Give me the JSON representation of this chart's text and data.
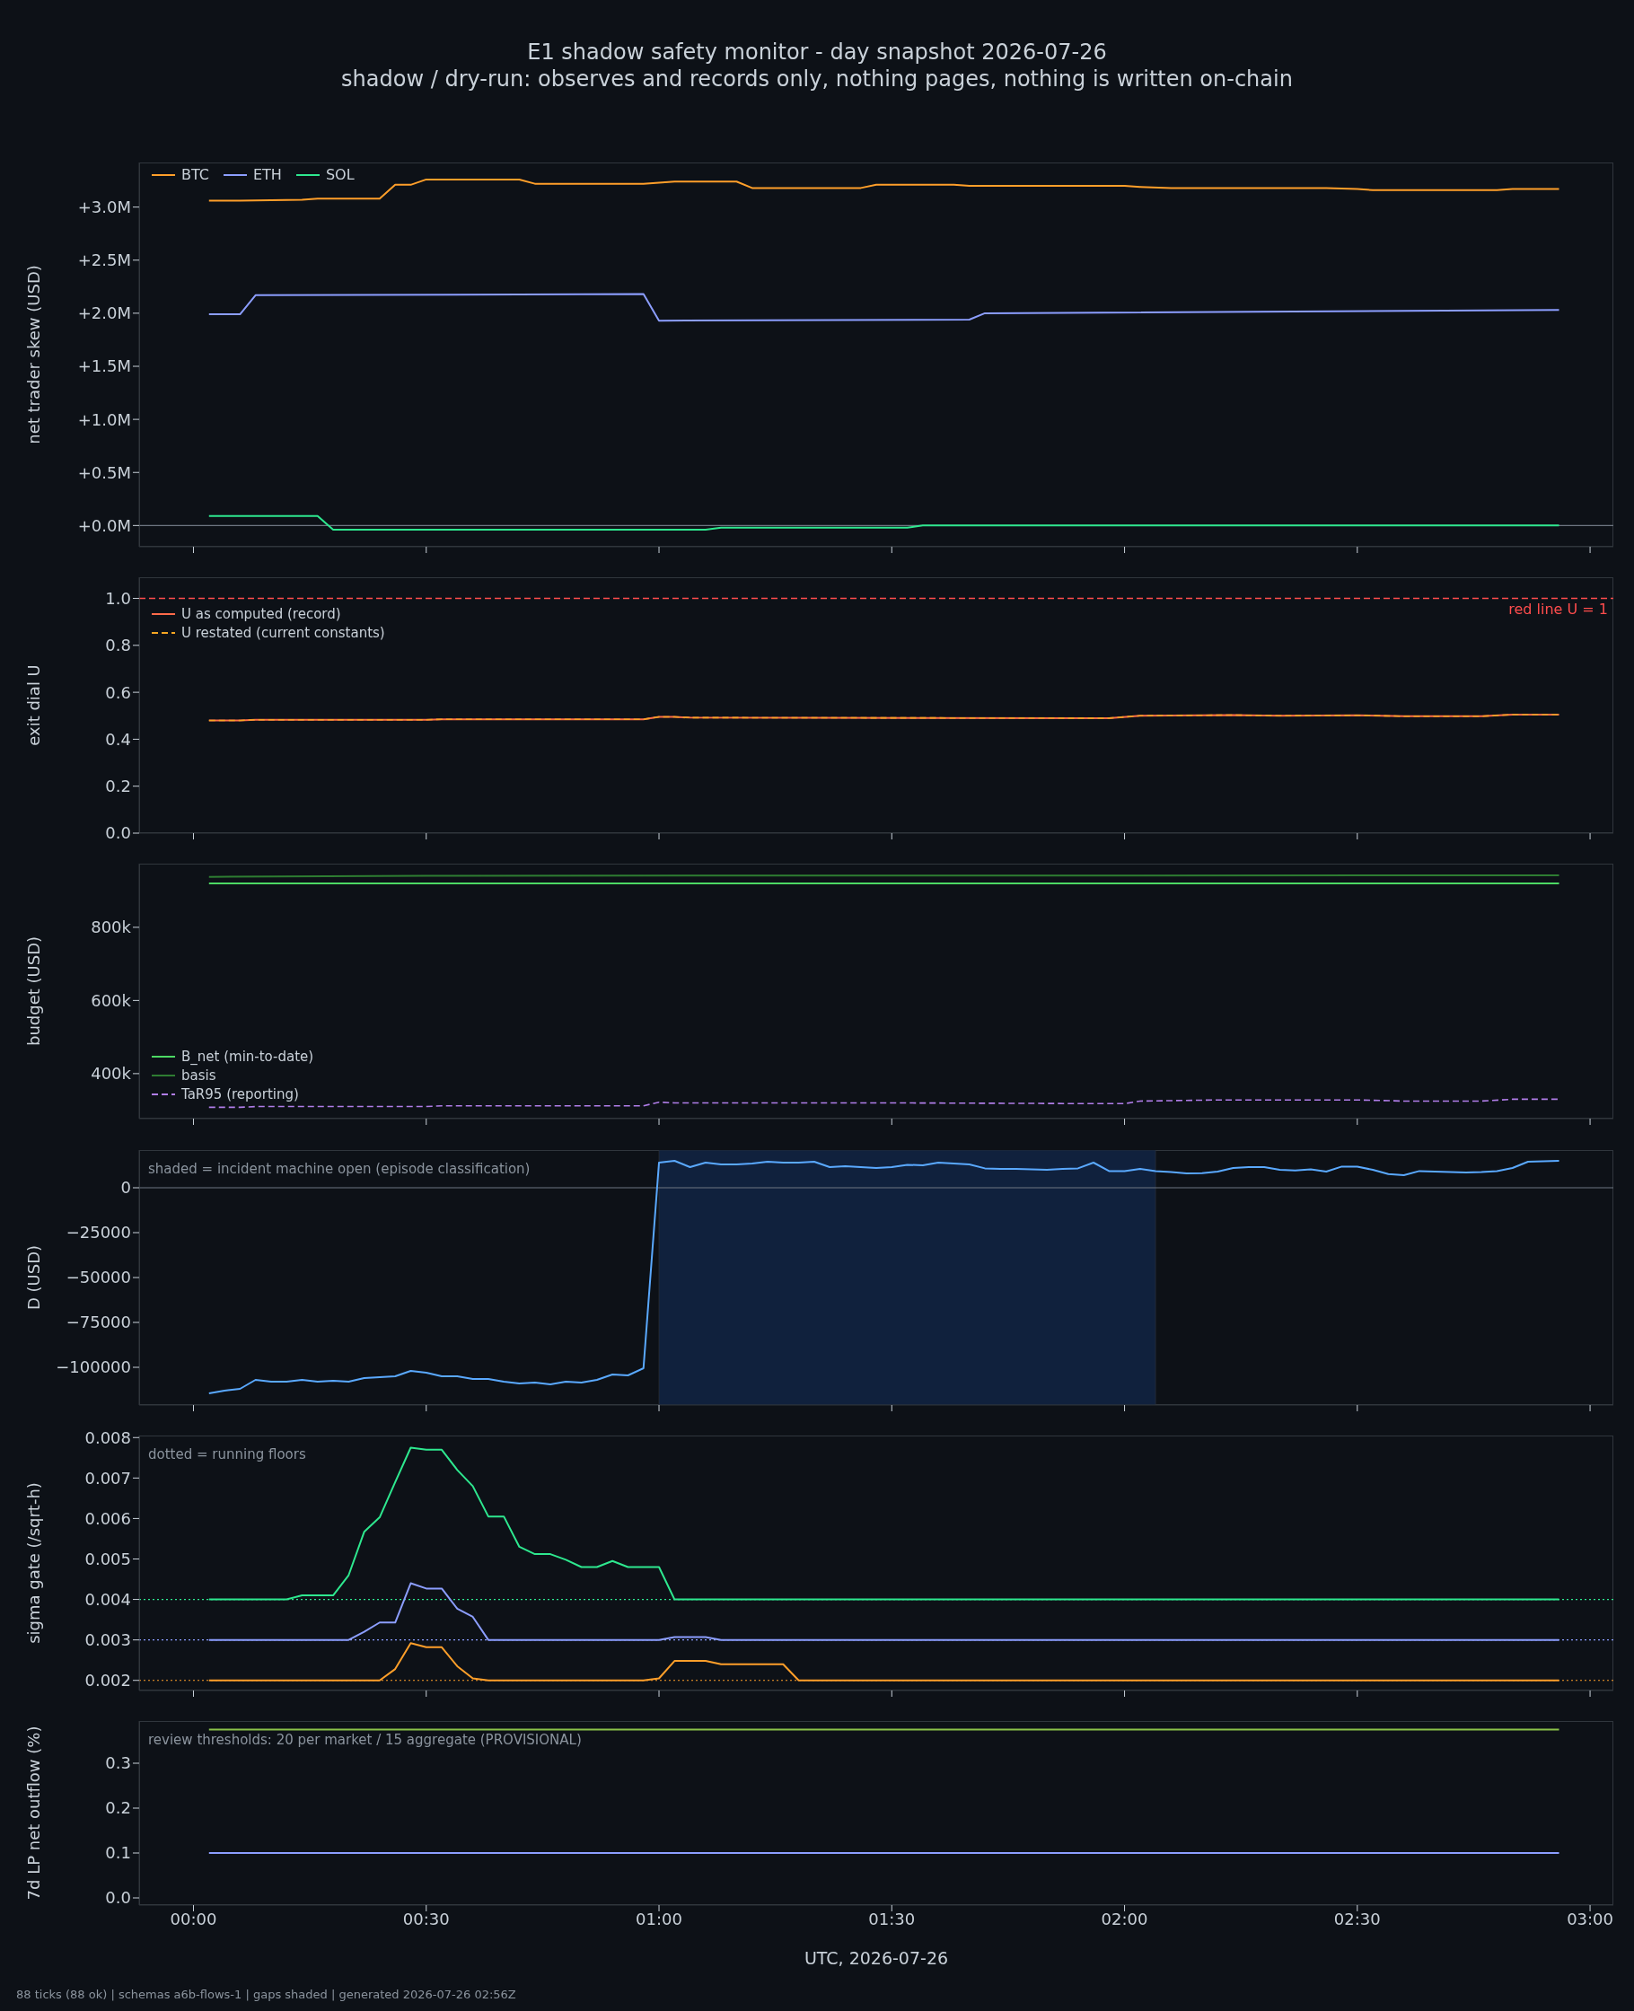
{
  "chart_data": [
    {
      "type": "line",
      "title": "E1 shadow safety monitor - day snapshot 2026-07-26",
      "subtitle": "shadow / dry-run: observes and records only, nothing pages, nothing is written on-chain",
      "ylabel": "net trader skew (USD)",
      "xlim": [
        "2026-07-25T23:53",
        "2026-07-26T03:03"
      ],
      "xticks": [
        {
          "value": "2026-07-26T00:00",
          "label": null
        },
        {
          "value": "2026-07-26T00:30",
          "label": null
        },
        {
          "value": "2026-07-26T01:00",
          "label": null
        },
        {
          "value": "2026-07-26T01:30",
          "label": null
        },
        {
          "value": "2026-07-26T02:00",
          "label": null
        },
        {
          "value": "2026-07-26T02:30",
          "label": null
        },
        {
          "value": "2026-07-26T03:00",
          "label": null
        }
      ],
      "ylim": [
        -0.2,
        3.42
      ],
      "yticks": [
        {
          "value": 0,
          "label": "+0.0M"
        },
        {
          "value": 0.5,
          "label": "+0.5M"
        },
        {
          "value": 1,
          "label": "+1.0M"
        },
        {
          "value": 1.5,
          "label": "+1.5M"
        },
        {
          "value": 2,
          "label": "+2.0M"
        },
        {
          "value": 2.5,
          "label": "+2.5M"
        },
        {
          "value": 3,
          "label": "+3.0M"
        }
      ],
      "tick_labels": "y",
      "legend": "top left",
      "ref_lines": [
        {
          "axis": "y",
          "value": 0,
          "color": "#6e7681"
        }
      ],
      "series": [
        {
          "name": "BTC",
          "color": "#ff9f2a",
          "x": [
            "2026-07-26T00:02",
            "2026-07-26T00:06",
            "2026-07-26T00:14",
            "2026-07-26T00:16",
            "2026-07-26T00:24",
            "2026-07-26T00:26",
            "2026-07-26T00:28",
            "2026-07-26T00:30",
            "2026-07-26T00:42",
            "2026-07-26T00:44",
            "2026-07-26T00:58",
            "2026-07-26T01:02",
            "2026-07-26T01:10",
            "2026-07-26T01:12",
            "2026-07-26T01:26",
            "2026-07-26T01:28",
            "2026-07-26T01:38",
            "2026-07-26T01:40",
            "2026-07-26T02:00",
            "2026-07-26T02:02",
            "2026-07-26T02:06",
            "2026-07-26T02:26",
            "2026-07-26T02:30",
            "2026-07-26T02:32",
            "2026-07-26T02:48",
            "2026-07-26T02:50",
            "2026-07-26T02:56"
          ],
          "values": [
            3.06,
            3.06,
            3.07,
            3.08,
            3.08,
            3.21,
            3.21,
            3.26,
            3.26,
            3.22,
            3.22,
            3.24,
            3.24,
            3.18,
            3.18,
            3.21,
            3.21,
            3.2,
            3.2,
            3.19,
            3.18,
            3.18,
            3.17,
            3.16,
            3.16,
            3.17,
            3.17
          ]
        },
        {
          "name": "ETH",
          "color": "#8c9eff",
          "x": [
            "2026-07-26T00:02",
            "2026-07-26T00:06",
            "2026-07-26T00:08",
            "2026-07-26T00:58",
            "2026-07-26T01:00",
            "2026-07-26T01:40",
            "2026-07-26T01:42",
            "2026-07-26T02:56"
          ],
          "values": [
            1.99,
            1.99,
            2.17,
            2.18,
            1.93,
            1.94,
            2.0,
            2.03
          ]
        },
        {
          "name": "SOL",
          "color": "#2ee88f",
          "x": [
            "2026-07-26T00:02",
            "2026-07-26T00:16",
            "2026-07-26T00:18",
            "2026-07-26T01:06",
            "2026-07-26T01:08",
            "2026-07-26T01:32",
            "2026-07-26T01:34",
            "2026-07-26T02:56"
          ],
          "values": [
            0.09,
            0.09,
            -0.04,
            -0.04,
            -0.02,
            -0.02,
            0,
            0
          ]
        }
      ]
    },
    {
      "type": "line",
      "ylabel": "exit dial U",
      "xlim": [
        "2026-07-25T23:53",
        "2026-07-26T03:03"
      ],
      "xticks": [
        {
          "value": "2026-07-26T00:00",
          "label": null
        },
        {
          "value": "2026-07-26T00:30",
          "label": null
        },
        {
          "value": "2026-07-26T01:00",
          "label": null
        },
        {
          "value": "2026-07-26T01:30",
          "label": null
        },
        {
          "value": "2026-07-26T02:00",
          "label": null
        },
        {
          "value": "2026-07-26T02:30",
          "label": null
        },
        {
          "value": "2026-07-26T03:00",
          "label": null
        }
      ],
      "ylim": [
        0,
        1.09
      ],
      "yticks": [
        {
          "value": 0,
          "label": "0.0"
        },
        {
          "value": 0.2,
          "label": "0.2"
        },
        {
          "value": 0.4,
          "label": "0.4"
        },
        {
          "value": 0.6,
          "label": "0.6"
        },
        {
          "value": 0.8,
          "label": "0.8"
        },
        {
          "value": 1,
          "label": "1.0"
        }
      ],
      "tick_labels": "y",
      "legend": "top left",
      "ref_lines": [
        {
          "axis": "y",
          "value": 1,
          "label": "red line U = 1",
          "color": "#ff4d4d",
          "line_style": "dashed"
        }
      ],
      "x": [
        "2026-07-26T00:02",
        "2026-07-26T00:06",
        "2026-07-26T00:08",
        "2026-07-26T00:30",
        "2026-07-26T00:32",
        "2026-07-26T00:58",
        "2026-07-26T01:00",
        "2026-07-26T01:02",
        "2026-07-26T01:04",
        "2026-07-26T01:58",
        "2026-07-26T02:02",
        "2026-07-26T02:14",
        "2026-07-26T02:20",
        "2026-07-26T02:30",
        "2026-07-26T02:36",
        "2026-07-26T02:46",
        "2026-07-26T02:50",
        "2026-07-26T02:56"
      ],
      "series": [
        {
          "name": "U as computed (record)",
          "color": "#ff6b4a",
          "values": [
            0.48,
            0.48,
            0.483,
            0.483,
            0.485,
            0.485,
            0.495,
            0.495,
            0.492,
            0.49,
            0.5,
            0.503,
            0.5,
            0.502,
            0.498,
            0.498,
            0.505,
            0.505
          ]
        },
        {
          "name": "U restated (current constants)",
          "color": "#f5a623",
          "line_style": "dashed",
          "values": [
            0.48,
            0.48,
            0.483,
            0.483,
            0.485,
            0.485,
            0.495,
            0.495,
            0.492,
            0.49,
            0.5,
            0.503,
            0.5,
            0.502,
            0.498,
            0.498,
            0.505,
            0.505
          ]
        }
      ]
    },
    {
      "type": "line",
      "ylabel": "budget (USD)",
      "xlim": [
        "2026-07-25T23:53",
        "2026-07-26T03:03"
      ],
      "xticks": [
        {
          "value": "2026-07-26T00:00",
          "label": null
        },
        {
          "value": "2026-07-26T00:30",
          "label": null
        },
        {
          "value": "2026-07-26T01:00",
          "label": null
        },
        {
          "value": "2026-07-26T01:30",
          "label": null
        },
        {
          "value": "2026-07-26T02:00",
          "label": null
        },
        {
          "value": "2026-07-26T02:30",
          "label": null
        },
        {
          "value": "2026-07-26T03:00",
          "label": null
        }
      ],
      "ylim": [
        277,
        974
      ],
      "yticks": [
        {
          "value": 400,
          "label": "400k"
        },
        {
          "value": 600,
          "label": "600k"
        },
        {
          "value": 800,
          "label": "800k"
        }
      ],
      "tick_labels": "y",
      "legend": "bottom left",
      "series": [
        {
          "name": "B_net (min-to-date)",
          "color": "#4cd964",
          "x": [
            "2026-07-26T00:02",
            "2026-07-26T02:56"
          ],
          "values": [
            920,
            920
          ]
        },
        {
          "name": "basis",
          "color": "#2e7d32",
          "x": [
            "2026-07-26T00:02",
            "2026-07-26T00:30",
            "2026-07-26T02:56"
          ],
          "values": [
            938,
            941,
            942
          ]
        },
        {
          "name": "TaR95 (reporting)",
          "color": "#b07de8",
          "line_style": "dashed",
          "x": [
            "2026-07-26T00:02",
            "2026-07-26T00:06",
            "2026-07-26T00:08",
            "2026-07-26T00:30",
            "2026-07-26T00:32",
            "2026-07-26T00:58",
            "2026-07-26T01:00",
            "2026-07-26T01:02",
            "2026-07-26T01:30",
            "2026-07-26T01:56",
            "2026-07-26T02:00",
            "2026-07-26T02:02",
            "2026-07-26T02:12",
            "2026-07-26T02:30",
            "2026-07-26T02:36",
            "2026-07-26T02:46",
            "2026-07-26T02:50",
            "2026-07-26T02:56"
          ],
          "values": [
            308,
            308,
            310,
            310,
            312,
            312,
            322,
            320,
            320,
            318,
            318,
            325,
            328,
            328,
            325,
            325,
            330,
            330
          ]
        }
      ]
    },
    {
      "type": "line",
      "ylabel": "D (USD)",
      "annotations": [
        "shaded = incident machine open (episode classification)"
      ],
      "xlim": [
        "2026-07-25T23:53",
        "2026-07-26T03:03"
      ],
      "xticks": [
        {
          "value": "2026-07-26T00:00",
          "label": null
        },
        {
          "value": "2026-07-26T00:30",
          "label": null
        },
        {
          "value": "2026-07-26T01:00",
          "label": null
        },
        {
          "value": "2026-07-26T01:30",
          "label": null
        },
        {
          "value": "2026-07-26T02:00",
          "label": null
        },
        {
          "value": "2026-07-26T02:30",
          "label": null
        },
        {
          "value": "2026-07-26T03:00",
          "label": null
        }
      ],
      "ylim": [
        -121000,
        21000
      ],
      "yticks": [
        {
          "value": -100000,
          "label": "−100000"
        },
        {
          "value": -75000,
          "label": "−75000"
        },
        {
          "value": -50000,
          "label": "−50000"
        },
        {
          "value": -25000,
          "label": "−25000"
        },
        0
      ],
      "tick_labels": "y",
      "ref_lines": [
        {
          "axis": "y",
          "value": 0,
          "color": "#6e7681"
        }
      ],
      "bands": [
        {
          "axis": "x",
          "from": "2026-07-26T01:00",
          "to": "2026-07-26T02:04",
          "color": "#10213d"
        }
      ],
      "x": [
        "2026-07-26T00:02",
        "2026-07-26T00:04",
        "2026-07-26T00:06",
        "2026-07-26T00:08",
        "2026-07-26T00:10",
        "2026-07-26T00:12",
        "2026-07-26T00:14",
        "2026-07-26T00:16",
        "2026-07-26T00:18",
        "2026-07-26T00:20",
        "2026-07-26T00:22",
        "2026-07-26T00:24",
        "2026-07-26T00:26",
        "2026-07-26T00:28",
        "2026-07-26T00:30",
        "2026-07-26T00:32",
        "2026-07-26T00:34",
        "2026-07-26T00:36",
        "2026-07-26T00:38",
        "2026-07-26T00:40",
        "2026-07-26T00:42",
        "2026-07-26T00:44",
        "2026-07-26T00:46",
        "2026-07-26T00:48",
        "2026-07-26T00:50",
        "2026-07-26T00:52",
        "2026-07-26T00:54",
        "2026-07-26T00:56",
        "2026-07-26T00:58",
        "2026-07-26T01:00",
        "2026-07-26T01:02",
        "2026-07-26T01:04",
        "2026-07-26T01:06",
        "2026-07-26T01:08",
        "2026-07-26T01:10",
        "2026-07-26T01:12",
        "2026-07-26T01:14",
        "2026-07-26T01:16",
        "2026-07-26T01:18",
        "2026-07-26T01:20",
        "2026-07-26T01:22",
        "2026-07-26T01:24",
        "2026-07-26T01:26",
        "2026-07-26T01:28",
        "2026-07-26T01:30",
        "2026-07-26T01:32",
        "2026-07-26T01:34",
        "2026-07-26T01:36",
        "2026-07-26T01:38",
        "2026-07-26T01:40",
        "2026-07-26T01:42",
        "2026-07-26T01:44",
        "2026-07-26T01:46",
        "2026-07-26T01:48",
        "2026-07-26T01:50",
        "2026-07-26T01:52",
        "2026-07-26T01:54",
        "2026-07-26T01:56",
        "2026-07-26T01:58",
        "2026-07-26T02:00",
        "2026-07-26T02:02",
        "2026-07-26T02:04",
        "2026-07-26T02:06",
        "2026-07-26T02:08",
        "2026-07-26T02:10",
        "2026-07-26T02:12",
        "2026-07-26T02:14",
        "2026-07-26T02:16",
        "2026-07-26T02:18",
        "2026-07-26T02:20",
        "2026-07-26T02:22",
        "2026-07-26T02:24",
        "2026-07-26T02:26",
        "2026-07-26T02:28",
        "2026-07-26T02:30",
        "2026-07-26T02:32",
        "2026-07-26T02:34",
        "2026-07-26T02:36",
        "2026-07-26T02:38",
        "2026-07-26T02:40",
        "2026-07-26T02:42",
        "2026-07-26T02:44",
        "2026-07-26T02:46",
        "2026-07-26T02:48",
        "2026-07-26T02:50",
        "2026-07-26T02:52",
        "2026-07-26T02:54",
        "2026-07-26T02:56"
      ],
      "series": [
        {
          "color": "#5aa9ff",
          "values": [
            -114500,
            -113000,
            -112000,
            -107000,
            -108000,
            -108000,
            -107000,
            -108000,
            -107500,
            -108000,
            -106000,
            -105500,
            -105000,
            -102000,
            -103000,
            -105000,
            -105000,
            -106500,
            -106500,
            -108000,
            -109000,
            -108500,
            -109500,
            -108000,
            -108500,
            -107000,
            -104000,
            -104500,
            -100500,
            14000,
            15000,
            11500,
            14000,
            13000,
            13000,
            13500,
            14500,
            14000,
            14000,
            14500,
            11500,
            12000,
            11500,
            11000,
            11500,
            12800,
            12500,
            14000,
            13500,
            13000,
            10800,
            10500,
            10500,
            10200,
            10000,
            10500,
            10800,
            14000,
            9300,
            9300,
            10500,
            9300,
            8700,
            8000,
            8100,
            9000,
            11000,
            11500,
            11500,
            10000,
            9600,
            10200,
            9000,
            11800,
            11800,
            10000,
            7600,
            7000,
            9300,
            9000,
            8800,
            8500,
            8800,
            9300,
            11000,
            14500,
            14800,
            15000
          ]
        }
      ]
    },
    {
      "type": "line",
      "ylabel": "sigma gate (/sqrt-h)",
      "annotations": [
        "dotted = running floors"
      ],
      "xlim": [
        "2026-07-25T23:53",
        "2026-07-26T03:03"
      ],
      "xticks": [
        {
          "value": "2026-07-26T00:00",
          "label": null
        },
        {
          "value": "2026-07-26T00:30",
          "label": null
        },
        {
          "value": "2026-07-26T01:00",
          "label": null
        },
        {
          "value": "2026-07-26T01:30",
          "label": null
        },
        {
          "value": "2026-07-26T02:00",
          "label": null
        },
        {
          "value": "2026-07-26T02:30",
          "label": null
        },
        {
          "value": "2026-07-26T03:00",
          "label": null
        }
      ],
      "ylim": [
        0.00175,
        0.00805
      ],
      "yticks": [
        0.002,
        0.003,
        0.004,
        0.005,
        0.006,
        0.007,
        0.008
      ],
      "tick_labels": "y",
      "ref_lines": [
        {
          "axis": "y",
          "value": 0.004,
          "color": "#2ee88f",
          "line_style": "dotted"
        },
        {
          "axis": "y",
          "value": 0.003,
          "color": "#8c9eff",
          "line_style": "dotted"
        },
        {
          "axis": "y",
          "value": 0.002,
          "color": "#ff9f2a",
          "line_style": "dotted"
        }
      ],
      "series": [
        {
          "color": "#2ee88f",
          "x": [
            "2026-07-26T00:02",
            "2026-07-26T00:12",
            "2026-07-26T00:14",
            "2026-07-26T00:18",
            "2026-07-26T00:20",
            "2026-07-26T00:22",
            "2026-07-26T00:24",
            "2026-07-26T00:26",
            "2026-07-26T00:28",
            "2026-07-26T00:30",
            "2026-07-26T00:32",
            "2026-07-26T00:34",
            "2026-07-26T00:36",
            "2026-07-26T00:38",
            "2026-07-26T00:40",
            "2026-07-26T00:42",
            "2026-07-26T00:44",
            "2026-07-26T00:46",
            "2026-07-26T00:48",
            "2026-07-26T00:50",
            "2026-07-26T00:52",
            "2026-07-26T00:54",
            "2026-07-26T00:56",
            "2026-07-26T01:00",
            "2026-07-26T01:02",
            "2026-07-26T02:56"
          ],
          "values": [
            0.004,
            0.004,
            0.0041,
            0.0041,
            0.0046,
            0.00567,
            0.00603,
            0.0069,
            0.00775,
            0.0077,
            0.0077,
            0.0072,
            0.0068,
            0.00605,
            0.00605,
            0.0053,
            0.00512,
            0.00512,
            0.00498,
            0.0048,
            0.0048,
            0.00495,
            0.0048,
            0.0048,
            0.004,
            0.004
          ]
        },
        {
          "color": "#8c9eff",
          "x": [
            "2026-07-26T00:02",
            "2026-07-26T00:20",
            "2026-07-26T00:22",
            "2026-07-26T00:24",
            "2026-07-26T00:26",
            "2026-07-26T00:28",
            "2026-07-26T00:30",
            "2026-07-26T00:32",
            "2026-07-26T00:34",
            "2026-07-26T00:36",
            "2026-07-26T00:38",
            "2026-07-26T01:00",
            "2026-07-26T01:02",
            "2026-07-26T01:06",
            "2026-07-26T01:08",
            "2026-07-26T02:56"
          ],
          "values": [
            0.003,
            0.003,
            0.0032,
            0.00343,
            0.00343,
            0.0044,
            0.00427,
            0.00427,
            0.00377,
            0.00357,
            0.003,
            0.003,
            0.00307,
            0.00307,
            0.003,
            0.003
          ]
        },
        {
          "color": "#ff9f2a",
          "x": [
            "2026-07-26T00:02",
            "2026-07-26T00:24",
            "2026-07-26T00:26",
            "2026-07-26T00:28",
            "2026-07-26T00:30",
            "2026-07-26T00:32",
            "2026-07-26T00:34",
            "2026-07-26T00:36",
            "2026-07-26T00:38",
            "2026-07-26T00:58",
            "2026-07-26T01:00",
            "2026-07-26T01:02",
            "2026-07-26T01:06",
            "2026-07-26T01:08",
            "2026-07-26T01:16",
            "2026-07-26T01:18",
            "2026-07-26T02:56"
          ],
          "values": [
            0.002,
            0.002,
            0.00228,
            0.00292,
            0.00282,
            0.00282,
            0.00235,
            0.00205,
            0.002,
            0.002,
            0.00205,
            0.00248,
            0.00248,
            0.0024,
            0.0024,
            0.002,
            0.002
          ]
        }
      ]
    },
    {
      "type": "line",
      "ylabel": "7d LP net outflow (%)",
      "xlabel": "UTC, 2026-07-26",
      "annotations": [
        "review thresholds: 20 per market / 15 aggregate (PROVISIONAL)",
        "88 ticks (88 ok) | schemas a6b-flows-1 | gaps shaded | generated 2026-07-26 02:56Z"
      ],
      "xlim": [
        "2026-07-25T23:53",
        "2026-07-26T03:03"
      ],
      "xticks": [
        {
          "value": "2026-07-26T00:00",
          "label": "00:00"
        },
        {
          "value": "2026-07-26T00:30",
          "label": "00:30"
        },
        {
          "value": "2026-07-26T01:00",
          "label": "01:00"
        },
        {
          "value": "2026-07-26T01:30",
          "label": "01:30"
        },
        {
          "value": "2026-07-26T02:00",
          "label": "02:00"
        },
        {
          "value": "2026-07-26T02:30",
          "label": "02:30"
        },
        {
          "value": "2026-07-26T03:00",
          "label": "03:00"
        }
      ],
      "ylim": [
        -0.016,
        0.394
      ],
      "yticks": [
        {
          "value": 0,
          "label": "0.0"
        },
        {
          "value": 0.1,
          "label": "0.1"
        },
        {
          "value": 0.2,
          "label": "0.2"
        },
        {
          "value": 0.3,
          "label": "0.3"
        }
      ],
      "series": [
        {
          "color": "#8bc34a",
          "x": [
            "2026-07-26T00:02",
            "2026-07-26T02:56"
          ],
          "values": [
            0.375,
            0.375
          ]
        },
        {
          "color": "#8c9eff",
          "x": [
            "2026-07-26T00:02",
            "2026-07-26T02:56"
          ],
          "values": [
            0.1,
            0.1
          ]
        }
      ]
    }
  ]
}
